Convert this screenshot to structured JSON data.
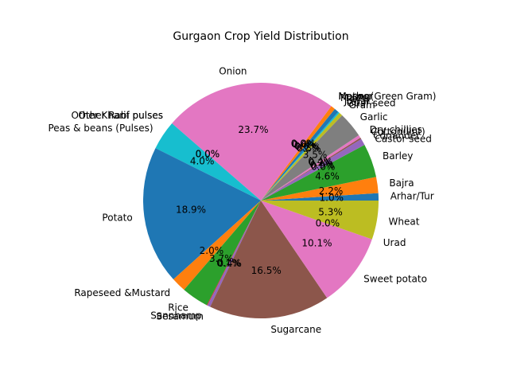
{
  "chart_data": {
    "type": "pie",
    "title": "Gurgaon Crop Yield Distribution",
    "start_angle_deg": 0,
    "direction": "counterclockwise",
    "slices": [
      {
        "label": "Arhar/Tur",
        "value": 1.0,
        "pct_text": "1.0%",
        "color": "#1f77b4"
      },
      {
        "label": "Bajra",
        "value": 2.2,
        "pct_text": "2.2%",
        "color": "#ff7f0e"
      },
      {
        "label": "Barley",
        "value": 4.6,
        "pct_text": "4.6%",
        "color": "#2ca02c"
      },
      {
        "label": "Castor seed",
        "value": 0.0,
        "pct_text": "0.0%",
        "color": "#d62728"
      },
      {
        "label": "Coriander",
        "value": 0.9,
        "pct_text": "0.9%",
        "color": "#9467bd"
      },
      {
        "label": "Cotton(lint)",
        "value": 0.2,
        "pct_text": "0.2%",
        "color": "#8c564b"
      },
      {
        "label": "Dry chillies",
        "value": 0.4,
        "pct_text": "0.4%",
        "color": "#e377c2"
      },
      {
        "label": "Garlic",
        "value": 3.5,
        "pct_text": "3.5%",
        "color": "#7f7f7f"
      },
      {
        "label": "Gram",
        "value": 0.5,
        "pct_text": "0.5%",
        "color": "#bcbd22"
      },
      {
        "label": "Guar seed",
        "value": 0.2,
        "pct_text": "0.2%",
        "color": "#17becf"
      },
      {
        "label": "Jowar",
        "value": 0.6,
        "pct_text": "0.6%",
        "color": "#1f77b4"
      },
      {
        "label": "Maize",
        "value": 0.6,
        "pct_text": "0.6%",
        "color": "#ff7f0e"
      },
      {
        "label": "Masoor",
        "value": 0.0,
        "pct_text": "0.0%",
        "color": "#2ca02c"
      },
      {
        "label": "Moong(Green Gram)",
        "value": 0.0,
        "pct_text": "0.0%",
        "color": "#d62728"
      },
      {
        "label": "Moth",
        "value": 0.0,
        "pct_text": "0.0%",
        "color": "#9467bd"
      },
      {
        "label": "Onion",
        "value": 23.7,
        "pct_text": "23.7%",
        "color": "#e377c2"
      },
      {
        "label": "Other Kharif pulses",
        "value": 0.0,
        "pct_text": "0.0%",
        "color": "#7f7f7f"
      },
      {
        "label": "Other Rabi pulses",
        "value": 0.0,
        "pct_text": "0.0%",
        "color": "#bcbd22"
      },
      {
        "label": "Peas & beans (Pulses)",
        "value": 4.0,
        "pct_text": "4.0%",
        "color": "#17becf"
      },
      {
        "label": "Potato",
        "value": 18.9,
        "pct_text": "18.9%",
        "color": "#1f77b4"
      },
      {
        "label": "Rapeseed &Mustard",
        "value": 2.0,
        "pct_text": "2.0%",
        "color": "#ff7f0e"
      },
      {
        "label": "Rice",
        "value": 3.7,
        "pct_text": "3.7%",
        "color": "#2ca02c"
      },
      {
        "label": "Sannhamp",
        "value": 0.1,
        "pct_text": "0.1%",
        "color": "#d62728"
      },
      {
        "label": "Sesamum",
        "value": 0.4,
        "pct_text": "0.4%",
        "color": "#9467bd"
      },
      {
        "label": "Sugarcane",
        "value": 16.5,
        "pct_text": "16.5%",
        "color": "#8c564b"
      },
      {
        "label": "Sweet potato",
        "value": 10.1,
        "pct_text": "10.1%",
        "color": "#e377c2"
      },
      {
        "label": "Urad",
        "value": 0.0,
        "pct_text": "0.0%",
        "color": "#7f7f7f"
      },
      {
        "label": "Wheat",
        "value": 5.3,
        "pct_text": "5.3%",
        "color": "#bcbd22"
      }
    ]
  }
}
